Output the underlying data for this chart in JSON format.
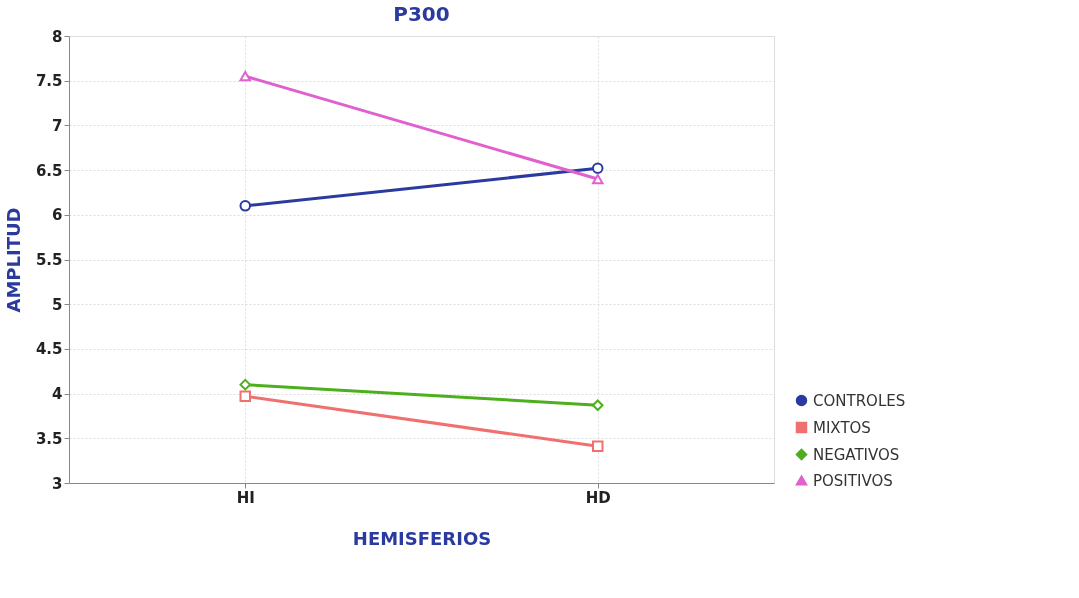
{
  "chart_data": {
    "type": "line",
    "title": "P300",
    "xlabel": "HEMISFERIOS",
    "ylabel": "AMPLITUD",
    "categories": [
      "HI",
      "HD"
    ],
    "series": [
      {
        "name": "CONTROLES",
        "color": "#2b3a9e",
        "marker": "circle",
        "values": [
          6.1,
          6.52
        ]
      },
      {
        "name": "MIXTOS",
        "color": "#f07070",
        "marker": "square",
        "values": [
          3.97,
          3.41
        ]
      },
      {
        "name": "NEGATIVOS",
        "color": "#4caf1e",
        "marker": "diamond",
        "values": [
          4.1,
          3.87
        ]
      },
      {
        "name": "POSITIVOS",
        "color": "#e060d0",
        "marker": "triangle",
        "values": [
          7.55,
          6.4
        ]
      }
    ],
    "ylim": [
      3,
      8
    ],
    "yticks": [
      3,
      3.5,
      4,
      4.5,
      5,
      5.5,
      6,
      6.5,
      7,
      7.5,
      8
    ],
    "grid": true,
    "legend": "bottom right",
    "line_style": "solid"
  }
}
